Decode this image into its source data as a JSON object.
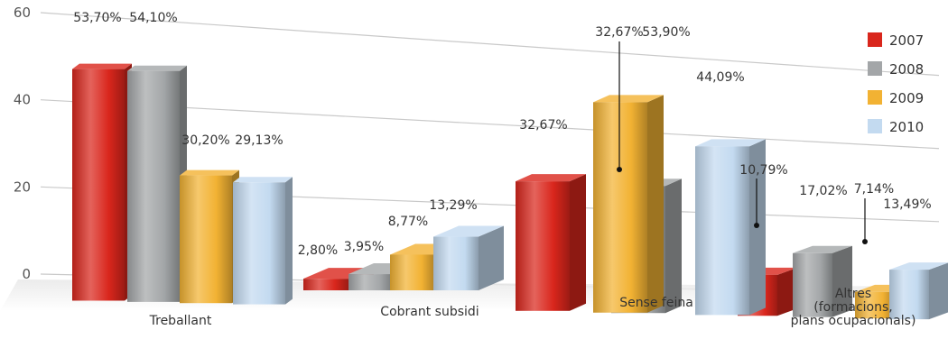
{
  "chart_data": {
    "type": "bar",
    "title": "",
    "xlabel": "",
    "ylabel": "",
    "ylim": [
      0,
      60
    ],
    "yticks": [
      0,
      20,
      40,
      60
    ],
    "grid": true,
    "legend_position": "top-right",
    "categories": [
      [
        "Treballant"
      ],
      [
        "Cobrant subsidi"
      ],
      [
        "Sense feina"
      ],
      [
        "Altres",
        "(formacions,",
        "plans ocupacionals)"
      ]
    ],
    "series": [
      {
        "name": "2007",
        "color": "#d9261c",
        "values": [
          53.7,
          2.8,
          32.67,
          10.79
        ],
        "labels": [
          "53,70%",
          "2,80%",
          "32,67%",
          "10,79%"
        ]
      },
      {
        "name": "2008",
        "color": "#a3a6a8",
        "values": [
          54.1,
          3.95,
          32.67,
          17.02
        ],
        "labels": [
          "54,10%",
          "3,95%",
          "32,67%",
          "17,02%"
        ]
      },
      {
        "name": "2009",
        "color": "#f2b233",
        "values": [
          30.2,
          8.77,
          53.9,
          7.14
        ],
        "labels": [
          "30,20%",
          "8,77%",
          "53,90%",
          "7,14%"
        ]
      },
      {
        "name": "2010",
        "color": "#c3daf0",
        "values": [
          29.13,
          13.29,
          44.09,
          13.49
        ],
        "labels": [
          "29,13%",
          "13,29%",
          "44,09%",
          "13,49%"
        ]
      }
    ]
  }
}
